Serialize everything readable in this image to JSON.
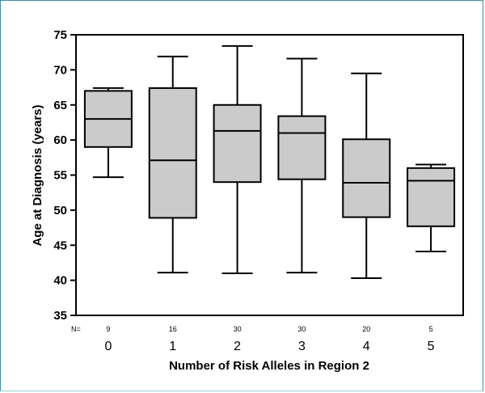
{
  "chart_data": {
    "type": "boxplot",
    "title": "",
    "xlabel": "Number of Risk Alleles in Region 2",
    "ylabel": "Age at Diagnosis (years)",
    "ylim": [
      35,
      75
    ],
    "yticks": [
      35,
      40,
      45,
      50,
      55,
      60,
      65,
      70,
      75
    ],
    "n_label": "N=",
    "grid": false,
    "legend": "none",
    "box_fill": "#cbcbcb",
    "line_color": "#000000",
    "groups": [
      {
        "category": "0",
        "n": "9",
        "min": 54.7,
        "q1": 59.0,
        "median": 63.0,
        "q3": 67.0,
        "max": 67.4
      },
      {
        "category": "1",
        "n": "16",
        "min": 41.1,
        "q1": 48.9,
        "median": 57.1,
        "q3": 67.4,
        "max": 71.9
      },
      {
        "category": "2",
        "n": "30",
        "min": 41.0,
        "q1": 54.0,
        "median": 61.3,
        "q3": 65.0,
        "max": 73.4
      },
      {
        "category": "3",
        "n": "30",
        "min": 41.1,
        "q1": 54.4,
        "median": 61.0,
        "q3": 63.4,
        "max": 71.6
      },
      {
        "category": "4",
        "n": "20",
        "min": 40.3,
        "q1": 49.0,
        "median": 53.9,
        "q3": 60.1,
        "max": 69.5
      },
      {
        "category": "5",
        "n": "5",
        "min": 44.1,
        "q1": 47.7,
        "median": 54.2,
        "q3": 56.0,
        "max": 56.5
      }
    ]
  }
}
